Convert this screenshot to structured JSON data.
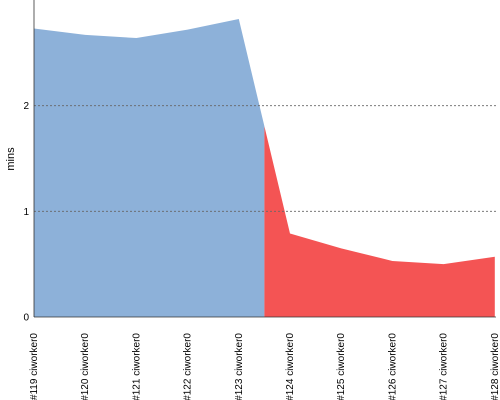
{
  "chart_data": {
    "type": "area",
    "title": "",
    "xlabel": "",
    "ylabel": "mins",
    "categories": [
      "#119 ciworker0",
      "#120 ciworker0",
      "#121 ciworker0",
      "#122 ciworker0",
      "#123 ciworker0",
      "#124 ciworker0",
      "#125 ciworker0",
      "#126 ciworker0",
      "#127 ciworker0",
      "#128 ciworker0"
    ],
    "series": [
      {
        "values": [
          2.73,
          2.67,
          2.64,
          2.72,
          2.82,
          0.79,
          0.65,
          0.53,
          0.5,
          0.57
        ],
        "segments": [
          {
            "from": 0,
            "to": 4.5,
            "color": "#8db1d9"
          },
          {
            "from": 4.5,
            "to": 9,
            "color": "#f45454"
          }
        ]
      }
    ],
    "ylim": [
      0,
      3
    ],
    "yticks": [
      0,
      1,
      2
    ],
    "grid": true,
    "gridlines_y": [
      1,
      2
    ]
  }
}
